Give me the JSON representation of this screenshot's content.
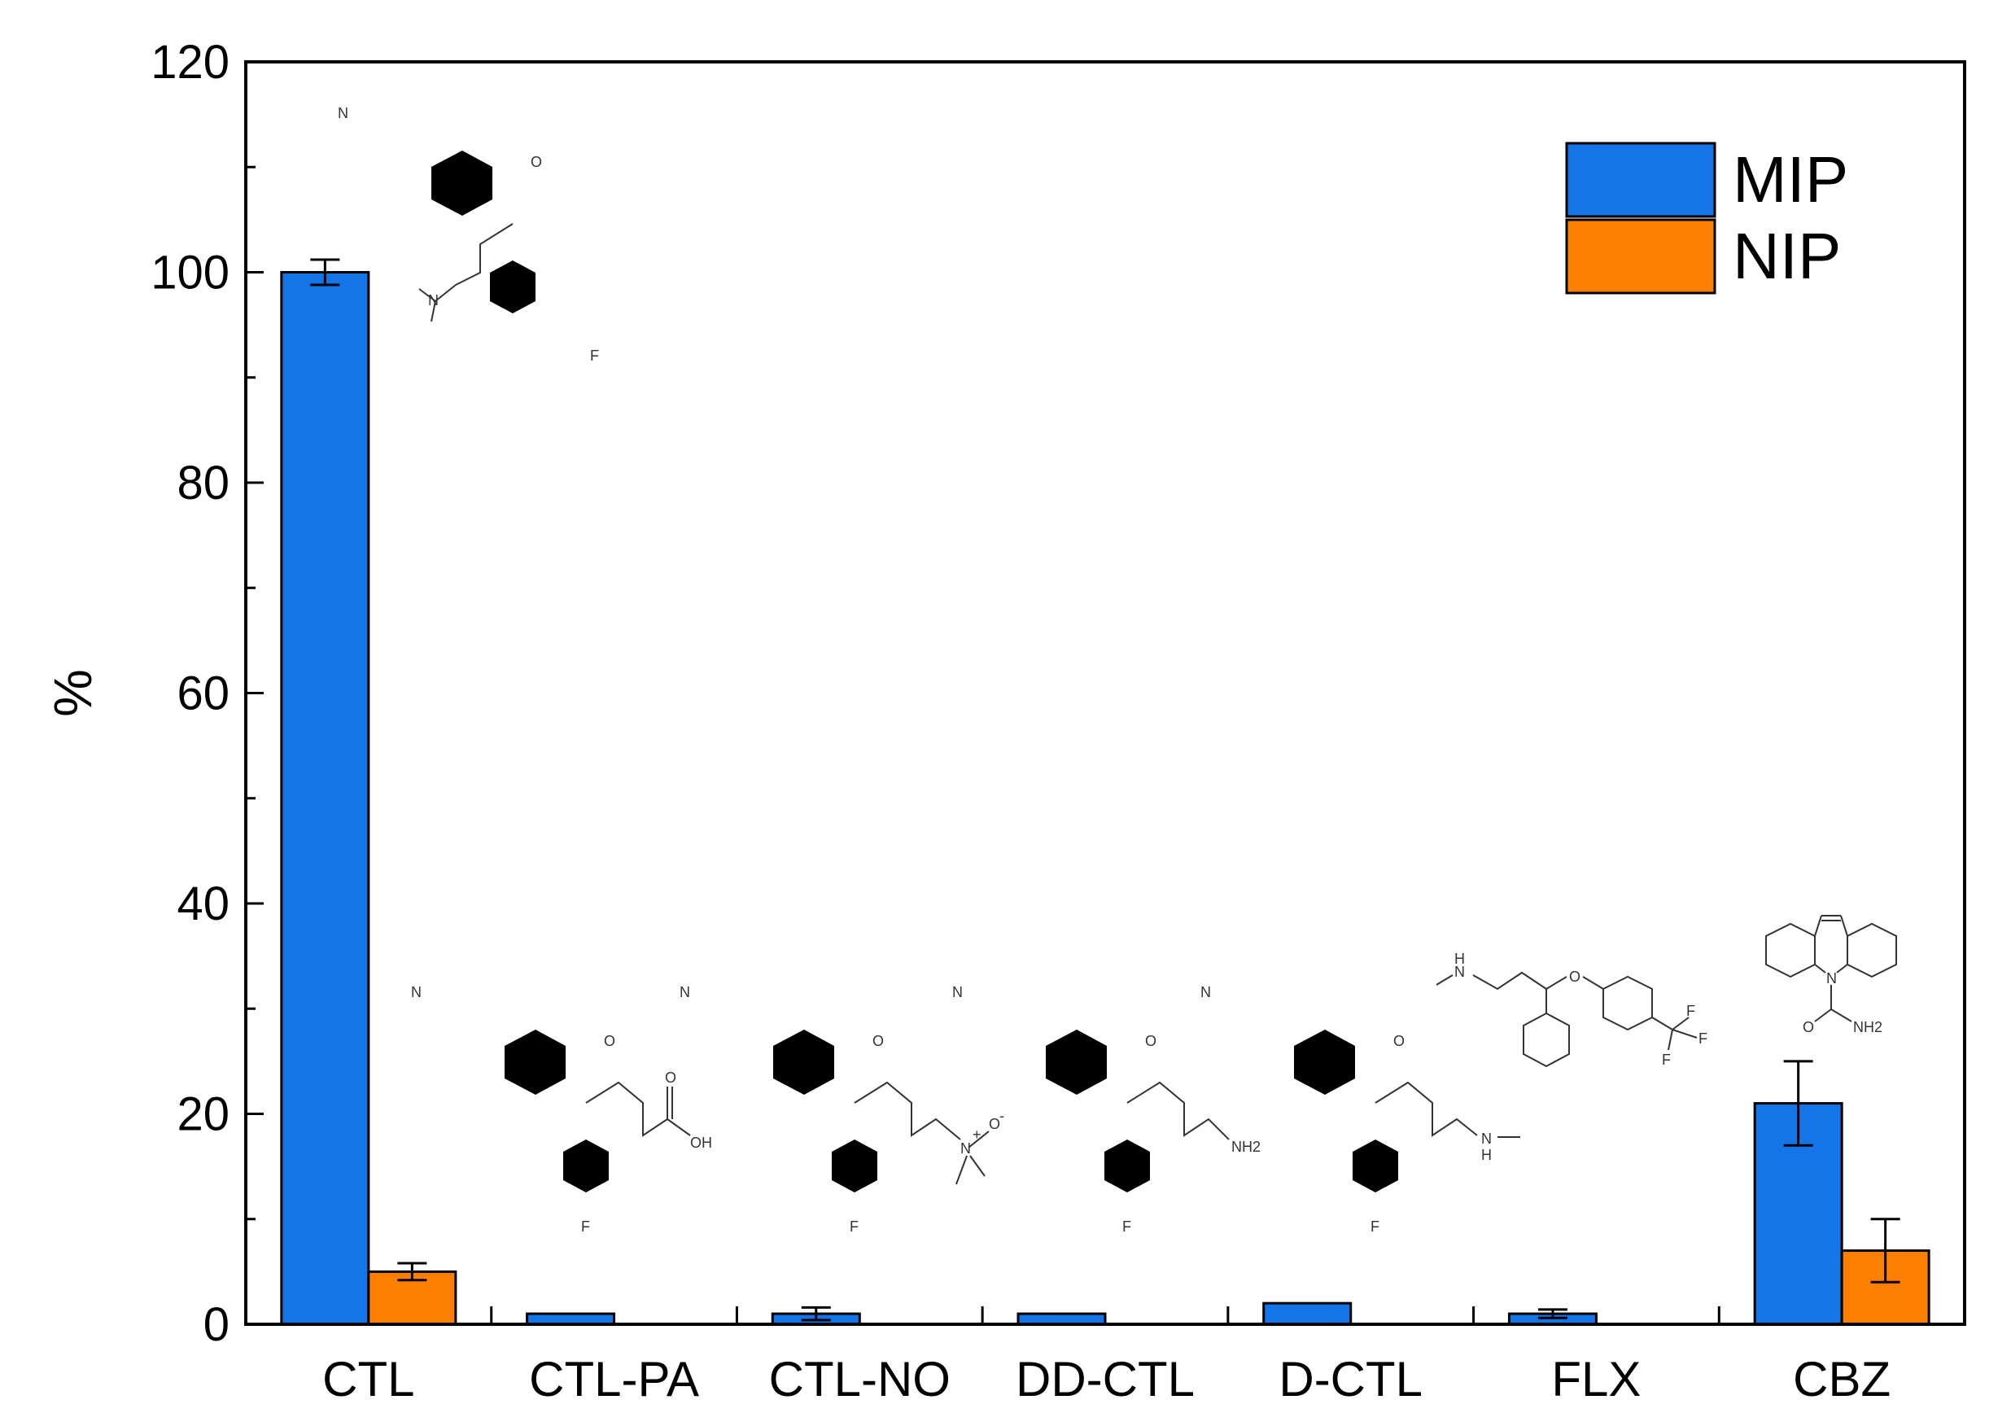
{
  "chart_data": {
    "type": "bar",
    "title": "",
    "xlabel": "",
    "ylabel": "%",
    "ylim": [
      0,
      120
    ],
    "yticks": [
      0,
      20,
      40,
      60,
      80,
      100,
      120
    ],
    "grid": false,
    "legend": "top-right",
    "categories": [
      "CTL",
      "CTL-PA",
      "CTL-NO",
      "DD-CTL",
      "D-CTL",
      "FLX",
      "CBZ"
    ],
    "series": [
      {
        "name": "MIP",
        "color": "#1475e8",
        "values": [
          100,
          1,
          1,
          1,
          2,
          1,
          21
        ],
        "errors": [
          1.2,
          0,
          0.6,
          0,
          0,
          0.4,
          4
        ]
      },
      {
        "name": "NIP",
        "color": "#ff8000",
        "values": [
          5,
          0,
          0,
          0,
          0,
          0,
          7
        ],
        "errors": [
          0.8,
          0,
          0,
          0,
          0,
          0,
          3
        ]
      }
    ],
    "structure_icons": [
      "citalopram-structure-icon",
      "citalopram-propionic-acid-structure-icon",
      "citalopram-n-oxide-structure-icon",
      "didesmethylcitalopram-structure-icon",
      "desmethylcitalopram-structure-icon",
      "fluoxetine-structure-icon",
      "carbamazepine-structure-icon"
    ]
  }
}
